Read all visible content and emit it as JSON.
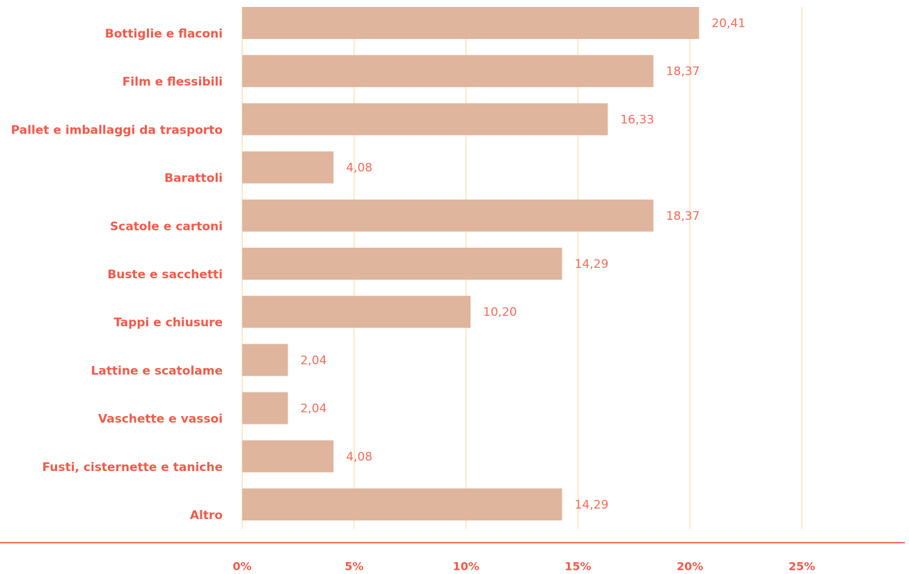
{
  "chart_data": {
    "type": "bar",
    "orientation": "horizontal",
    "categories": [
      "Bottiglie e flaconi",
      "Film e flessibili",
      "Pallet e imballaggi da trasporto",
      "Barattoli",
      "Scatole e cartoni",
      "Buste e sacchetti",
      "Tappi e chiusure",
      "Lattine e scatolame",
      "Vaschette e vassoi",
      "Fusti, cisternette e taniche",
      "Altro"
    ],
    "values": [
      20.41,
      18.37,
      16.33,
      4.08,
      18.37,
      14.29,
      10.2,
      2.04,
      2.04,
      4.08,
      14.29
    ],
    "value_labels": [
      "20,41",
      "18,37",
      "16,33",
      "4,08",
      "18,37",
      "14,29",
      "10,20",
      "2,04",
      "2,04",
      "4,08",
      "14,29"
    ],
    "color": "#dfb59e",
    "xlim": [
      0,
      29.6
    ],
    "xticks": [
      {
        "value": 0,
        "label": "0%"
      },
      {
        "value": 5,
        "label": "5%"
      },
      {
        "value": 10,
        "label": "10%"
      },
      {
        "value": 15,
        "label": "15%"
      },
      {
        "value": 20,
        "label": "20%"
      },
      {
        "value": 25,
        "label": "25%"
      }
    ],
    "grid": true
  }
}
